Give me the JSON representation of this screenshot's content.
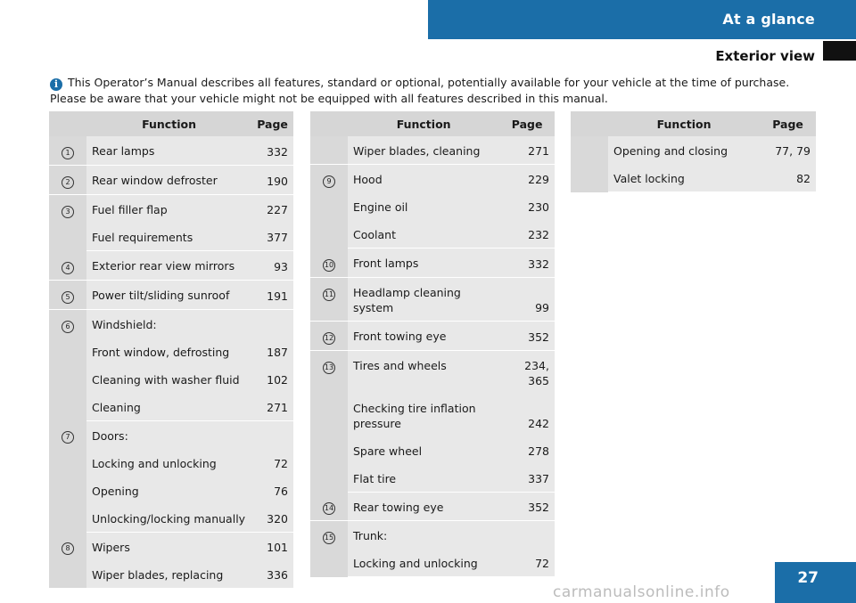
{
  "header": {
    "section": "At a glance",
    "subsection": "Exterior view"
  },
  "note": "This Operator’s Manual describes all features, standard or optional, potentially available for your vehicle at the time of purchase. Please be aware that your vehicle might not be equipped with all features described in this manual.",
  "columns": {
    "function": "Function",
    "page": "Page"
  },
  "tables": [
    {
      "rows": [
        {
          "num": "1",
          "items": [
            {
              "fn": "Rear lamps",
              "page": "332"
            }
          ]
        },
        {
          "num": "2",
          "items": [
            {
              "fn": "Rear window defroster",
              "page": "190"
            }
          ]
        },
        {
          "num": "3",
          "items": [
            {
              "fn": "Fuel filler flap",
              "page": "227"
            },
            {
              "fn": "Fuel requirements",
              "page": "377"
            }
          ]
        },
        {
          "num": "4",
          "items": [
            {
              "fn": "Exterior rear view mirrors",
              "page": "93"
            }
          ]
        },
        {
          "num": "5",
          "items": [
            {
              "fn": "Power tilt/sliding sunroof",
              "page": "191"
            }
          ]
        },
        {
          "num": "6",
          "items": [
            {
              "fn": "Windshield:",
              "page": ""
            },
            {
              "fn": "Front window, defrosting",
              "page": "187"
            },
            {
              "fn": "Cleaning with washer fluid",
              "page": "102"
            },
            {
              "fn": "Cleaning",
              "page": "271"
            }
          ]
        },
        {
          "num": "7",
          "items": [
            {
              "fn": "Doors:",
              "page": ""
            },
            {
              "fn": "Locking and unlocking",
              "page": "72"
            },
            {
              "fn": "Opening",
              "page": "76"
            },
            {
              "fn": "Unlocking/locking manually",
              "page": "320"
            }
          ]
        },
        {
          "num": "8",
          "items": [
            {
              "fn": "Wipers",
              "page": "101"
            },
            {
              "fn": "Wiper blades, replacing",
              "page": "336"
            }
          ]
        }
      ]
    },
    {
      "rows": [
        {
          "num": "",
          "items": [
            {
              "fn": "Wiper blades, cleaning",
              "page": "271"
            }
          ]
        },
        {
          "num": "9",
          "items": [
            {
              "fn": "Hood",
              "page": "229"
            },
            {
              "fn": "Engine oil",
              "page": "230"
            },
            {
              "fn": "Coolant",
              "page": "232"
            }
          ]
        },
        {
          "num": "10",
          "items": [
            {
              "fn": "Front lamps",
              "page": "332"
            }
          ]
        },
        {
          "num": "11",
          "items": [
            {
              "fn": "Headlamp cleaning system",
              "page": "99"
            }
          ]
        },
        {
          "num": "12",
          "items": [
            {
              "fn": "Front towing eye",
              "page": "352"
            }
          ]
        },
        {
          "num": "13",
          "items": [
            {
              "fn": "Tires and wheels",
              "page": "234, 365"
            },
            {
              "fn": "Checking tire inflation pressure",
              "page": "242"
            },
            {
              "fn": "Spare wheel",
              "page": "278"
            },
            {
              "fn": "Flat tire",
              "page": "337"
            }
          ]
        },
        {
          "num": "14",
          "items": [
            {
              "fn": "Rear towing eye",
              "page": "352"
            }
          ]
        },
        {
          "num": "15",
          "items": [
            {
              "fn": "Trunk:",
              "page": ""
            },
            {
              "fn": "Locking and unlocking",
              "page": "72"
            }
          ]
        }
      ]
    },
    {
      "rows": [
        {
          "num": "",
          "items": [
            {
              "fn": "Opening and closing",
              "page": "77, 79"
            },
            {
              "fn": "Valet locking",
              "page": "82"
            }
          ]
        }
      ]
    }
  ],
  "footer": {
    "page_number": "27",
    "watermark": "carmanualsonline.info"
  }
}
